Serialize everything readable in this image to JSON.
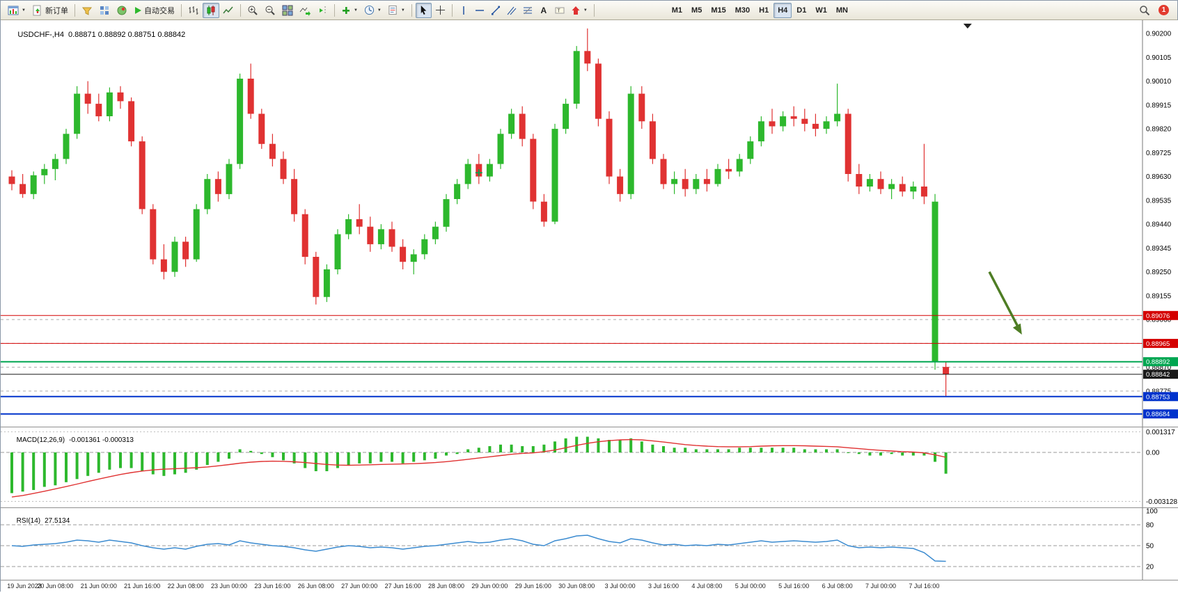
{
  "toolbar": {
    "new_order_label": "新订单",
    "auto_trading_label": "自动交易",
    "timeframes": [
      "M1",
      "M5",
      "M15",
      "M30",
      "H1",
      "H4",
      "D1",
      "W1",
      "MN"
    ],
    "active_timeframe": "H4",
    "notification_count": "1"
  },
  "chart": {
    "symbol_period": "USDCHF-,H4",
    "ohlc_quote": "0.88871 0.88892 0.88751 0.88842"
  },
  "indicators": {
    "macd": {
      "name": "MACD(12,26,9)",
      "values": "-0.001361 -0.000313",
      "axis_labels": [
        "0.001317",
        "0.00",
        "-0.003128"
      ]
    },
    "rsi": {
      "name": "RSI(14)",
      "value": "27.5134",
      "axis_labels": [
        "100",
        "80",
        "50",
        "20"
      ]
    }
  },
  "colors": {
    "bull": "#2db82d",
    "bear": "#e03232",
    "macd_hist": "#2db82d",
    "macd_signal": "#e03232",
    "rsi_line": "#3b8bd0",
    "arrow_annotation": "#4e7d24",
    "grid": "#aaaaaa"
  },
  "chart_data": {
    "price": {
      "type": "candlestick",
      "symbol": "USDCHF",
      "timeframe": "H4",
      "ylim": [
        0.88633,
        0.90253
      ],
      "axis_labels": [
        "0.90200",
        "0.90105",
        "0.90010",
        "0.89915",
        "0.89820",
        "0.89725",
        "0.89630",
        "0.89535",
        "0.89440",
        "0.89345",
        "0.89250",
        "0.89155",
        "0.89060",
        "0.88965",
        "0.88870",
        "0.88775",
        "0.88680"
      ],
      "grid_levels": [
        0.8906,
        0.88965,
        0.8887,
        0.88775
      ],
      "lines": [
        {
          "value": 0.89076,
          "label": "0.89076",
          "color": "#d40000",
          "width": 1
        },
        {
          "value": 0.88965,
          "label": "0.88965",
          "color": "#d40000",
          "width": 1
        },
        {
          "value": 0.88892,
          "label": "0.88892",
          "color": "#00a651",
          "width": 2
        },
        {
          "value": 0.88842,
          "label": "0.88842",
          "color": "#1a1a1a",
          "width": 1
        },
        {
          "value": 0.88753,
          "label": "0.88753",
          "color": "#0033cc",
          "width": 2
        },
        {
          "value": 0.88684,
          "label": "0.88684",
          "color": "#0033cc",
          "width": 2
        }
      ],
      "marker": {
        "bar": 43,
        "price": 0.89645
      },
      "arrow": {
        "from_bar": 90,
        "from_price": 0.8925,
        "to_bar": 93,
        "to_price": 0.89
      },
      "shift_marker_bar": 88,
      "bars_per_label": 4,
      "ohlc": [
        [
          0.8963,
          0.89655,
          0.89575,
          0.896
        ],
        [
          0.896,
          0.8964,
          0.89545,
          0.8956
        ],
        [
          0.8956,
          0.8965,
          0.8954,
          0.89635
        ],
        [
          0.89635,
          0.8968,
          0.896,
          0.8966
        ],
        [
          0.8966,
          0.8972,
          0.89615,
          0.897
        ],
        [
          0.897,
          0.8982,
          0.8968,
          0.898
        ],
        [
          0.898,
          0.8999,
          0.8978,
          0.8996
        ],
        [
          0.8996,
          0.9001,
          0.8988,
          0.8992
        ],
        [
          0.8992,
          0.8996,
          0.8985,
          0.8987
        ],
        [
          0.8987,
          0.89985,
          0.8985,
          0.89965
        ],
        [
          0.89965,
          0.8999,
          0.899,
          0.8993
        ],
        [
          0.8993,
          0.89945,
          0.8975,
          0.8977
        ],
        [
          0.8977,
          0.8979,
          0.8948,
          0.895
        ],
        [
          0.895,
          0.8952,
          0.8928,
          0.893
        ],
        [
          0.893,
          0.8936,
          0.8922,
          0.8925
        ],
        [
          0.8925,
          0.8939,
          0.8923,
          0.8937
        ],
        [
          0.8937,
          0.8939,
          0.8927,
          0.893
        ],
        [
          0.893,
          0.8952,
          0.8929,
          0.895
        ],
        [
          0.895,
          0.8964,
          0.8948,
          0.8962
        ],
        [
          0.8962,
          0.8965,
          0.8953,
          0.8956
        ],
        [
          0.8956,
          0.897,
          0.8954,
          0.8968
        ],
        [
          0.8968,
          0.9004,
          0.8966,
          0.9002
        ],
        [
          0.9002,
          0.9008,
          0.8986,
          0.8988
        ],
        [
          0.8988,
          0.899,
          0.8974,
          0.8976
        ],
        [
          0.8976,
          0.898,
          0.8967,
          0.897
        ],
        [
          0.897,
          0.8973,
          0.896,
          0.8962
        ],
        [
          0.8962,
          0.8966,
          0.8945,
          0.8948
        ],
        [
          0.8948,
          0.895,
          0.8928,
          0.8931
        ],
        [
          0.8931,
          0.8933,
          0.8912,
          0.8915
        ],
        [
          0.8915,
          0.8928,
          0.8913,
          0.8926
        ],
        [
          0.8926,
          0.8942,
          0.8924,
          0.894
        ],
        [
          0.894,
          0.8948,
          0.8938,
          0.8946
        ],
        [
          0.8946,
          0.8952,
          0.894,
          0.8943
        ],
        [
          0.8943,
          0.8947,
          0.8933,
          0.8936
        ],
        [
          0.8936,
          0.8944,
          0.8934,
          0.8942
        ],
        [
          0.8942,
          0.8945,
          0.8933,
          0.8935
        ],
        [
          0.8935,
          0.8938,
          0.8926,
          0.8929
        ],
        [
          0.8929,
          0.8934,
          0.8924,
          0.8932
        ],
        [
          0.8932,
          0.894,
          0.893,
          0.8938
        ],
        [
          0.8938,
          0.8945,
          0.8936,
          0.8943
        ],
        [
          0.8943,
          0.8956,
          0.8941,
          0.8954
        ],
        [
          0.8954,
          0.8962,
          0.8952,
          0.896
        ],
        [
          0.896,
          0.897,
          0.8958,
          0.8968
        ],
        [
          0.8968,
          0.8972,
          0.896,
          0.8963
        ],
        [
          0.8963,
          0.897,
          0.8961,
          0.8968
        ],
        [
          0.8968,
          0.8982,
          0.8966,
          0.898
        ],
        [
          0.898,
          0.899,
          0.8978,
          0.8988
        ],
        [
          0.8988,
          0.8991,
          0.8975,
          0.8978
        ],
        [
          0.8978,
          0.898,
          0.895,
          0.8953
        ],
        [
          0.8953,
          0.8956,
          0.8943,
          0.8945
        ],
        [
          0.8945,
          0.8984,
          0.8944,
          0.8982
        ],
        [
          0.8982,
          0.8994,
          0.898,
          0.8992
        ],
        [
          0.8992,
          0.9015,
          0.899,
          0.9013
        ],
        [
          0.9013,
          0.9022,
          0.9005,
          0.9008
        ],
        [
          0.9008,
          0.901,
          0.8983,
          0.8986
        ],
        [
          0.8986,
          0.8989,
          0.896,
          0.8963
        ],
        [
          0.8963,
          0.8966,
          0.8953,
          0.8956
        ],
        [
          0.8956,
          0.8999,
          0.8954,
          0.8996
        ],
        [
          0.8996,
          0.8999,
          0.8982,
          0.8985
        ],
        [
          0.8985,
          0.8988,
          0.8968,
          0.897
        ],
        [
          0.897,
          0.8972,
          0.8958,
          0.896
        ],
        [
          0.896,
          0.8965,
          0.8956,
          0.8962
        ],
        [
          0.8962,
          0.8966,
          0.8955,
          0.8958
        ],
        [
          0.8958,
          0.8964,
          0.8956,
          0.8962
        ],
        [
          0.8962,
          0.8966,
          0.8957,
          0.896
        ],
        [
          0.896,
          0.8968,
          0.8959,
          0.8966
        ],
        [
          0.8966,
          0.897,
          0.8962,
          0.8965
        ],
        [
          0.8965,
          0.8972,
          0.8963,
          0.897
        ],
        [
          0.897,
          0.8979,
          0.8968,
          0.8977
        ],
        [
          0.8977,
          0.8987,
          0.8975,
          0.8985
        ],
        [
          0.8985,
          0.899,
          0.898,
          0.8983
        ],
        [
          0.8983,
          0.8989,
          0.8981,
          0.8987
        ],
        [
          0.8987,
          0.8991,
          0.8983,
          0.8986
        ],
        [
          0.8986,
          0.899,
          0.8981,
          0.8984
        ],
        [
          0.8984,
          0.8988,
          0.8979,
          0.8982
        ],
        [
          0.8982,
          0.8987,
          0.898,
          0.8985
        ],
        [
          0.8985,
          0.9,
          0.8983,
          0.8988
        ],
        [
          0.8988,
          0.899,
          0.8961,
          0.8964
        ],
        [
          0.8964,
          0.8968,
          0.8956,
          0.8959
        ],
        [
          0.8959,
          0.8964,
          0.8957,
          0.8962
        ],
        [
          0.8962,
          0.8965,
          0.8956,
          0.8958
        ],
        [
          0.8958,
          0.8962,
          0.8954,
          0.896
        ],
        [
          0.896,
          0.8963,
          0.8955,
          0.8957
        ],
        [
          0.8957,
          0.8961,
          0.8954,
          0.8959
        ],
        [
          0.8959,
          0.8976,
          0.8952,
          0.8955
        ],
        [
          0.8889,
          0.8956,
          0.8886,
          0.8953
        ],
        [
          0.88871,
          0.88892,
          0.88751,
          0.88842
        ]
      ]
    },
    "macd": {
      "type": "bar+line",
      "name": "MACD(12,26,9)",
      "last_histogram": -0.001361,
      "last_signal": -0.000313,
      "axis_values": [
        0.001317,
        0,
        -0.003128
      ],
      "histogram": [
        -0.0026,
        -0.0025,
        -0.0024,
        -0.0022,
        -0.0021,
        -0.0019,
        -0.0017,
        -0.0015,
        -0.0013,
        -0.0011,
        -0.001,
        -0.001,
        -0.0012,
        -0.0014,
        -0.0015,
        -0.0014,
        -0.0013,
        -0.0011,
        -0.0008,
        -0.0006,
        -0.0004,
        0.0002,
        0.0001,
        -0.0001,
        -0.0003,
        -0.0005,
        -0.0007,
        -0.001,
        -0.0012,
        -0.0012,
        -0.001,
        -0.0008,
        -0.0007,
        -0.0007,
        -0.0006,
        -0.0006,
        -0.0007,
        -0.0006,
        -0.0005,
        -0.0004,
        -0.0002,
        -0.0001,
        0.0002,
        0.0003,
        0.0004,
        0.0005,
        0.0005,
        0.0004,
        0.0004,
        0.0005,
        0.0007,
        0.0009,
        0.001,
        0.001,
        0.0009,
        0.0008,
        0.0008,
        0.0009,
        0.0007,
        0.0005,
        0.0004,
        0.0003,
        0.0003,
        0.0002,
        0.0002,
        0.0002,
        0.0002,
        0.0003,
        0.0003,
        0.0003,
        0.0003,
        0.0003,
        0.0003,
        0.0002,
        0.0002,
        0.0002,
        0.0002,
        0.0,
        -0.0001,
        -0.0002,
        -0.0002,
        -0.0001,
        -0.0002,
        -0.0002,
        -0.0002,
        -0.0006,
        -0.001361
      ],
      "signal": [
        -0.00285,
        -0.00275,
        -0.00262,
        -0.00248,
        -0.00233,
        -0.00218,
        -0.00202,
        -0.00186,
        -0.0017,
        -0.00155,
        -0.00141,
        -0.00129,
        -0.00119,
        -0.00112,
        -0.00107,
        -0.00104,
        -0.00101,
        -0.00098,
        -0.00093,
        -0.00086,
        -0.00078,
        -0.00069,
        -0.00062,
        -0.00058,
        -0.00056,
        -0.00057,
        -0.0006,
        -0.00065,
        -0.00071,
        -0.00077,
        -0.00081,
        -0.00082,
        -0.00081,
        -0.00079,
        -0.00077,
        -0.00075,
        -0.00074,
        -0.00072,
        -0.00069,
        -0.00065,
        -0.00059,
        -0.00052,
        -0.00044,
        -0.00036,
        -0.00028,
        -0.0002,
        -0.00012,
        -6e-05,
        -3e-05,
        5e-05,
        0.00015,
        0.0003,
        0.00045,
        0.00058,
        0.00068,
        0.00075,
        0.0008,
        0.00082,
        0.0008,
        0.00074,
        0.00066,
        0.00058,
        0.0005,
        0.00044,
        0.0004,
        0.00037,
        0.00036,
        0.00036,
        0.00037,
        0.0004,
        0.00042,
        0.00043,
        0.00043,
        0.00042,
        0.0004,
        0.00038,
        0.00036,
        0.0003,
        0.00024,
        0.00018,
        0.00013,
        9e-05,
        5e-05,
        2e-05,
        -3e-05,
        -0.00015,
        -0.000313
      ]
    },
    "rsi": {
      "type": "line",
      "name": "RSI(14)",
      "last": 27.5134,
      "levels": [
        80,
        50,
        20
      ],
      "values": [
        50,
        49,
        51,
        52,
        53,
        55,
        58,
        57,
        55,
        58,
        56,
        54,
        50,
        47,
        45,
        47,
        45,
        49,
        52,
        53,
        51,
        57,
        54,
        52,
        50,
        49,
        47,
        44,
        42,
        45,
        48,
        50,
        49,
        47,
        48,
        47,
        45,
        47,
        49,
        50,
        52,
        54,
        56,
        54,
        55,
        58,
        60,
        57,
        52,
        50,
        57,
        60,
        64,
        65,
        60,
        56,
        54,
        60,
        58,
        54,
        51,
        52,
        50,
        51,
        50,
        52,
        51,
        53,
        55,
        57,
        55,
        56,
        57,
        56,
        55,
        56,
        58,
        50,
        47,
        48,
        47,
        48,
        47,
        46,
        40,
        28,
        27.5
      ]
    },
    "time_labels": [
      "19 Jun 2023",
      "20 Jun 08:00",
      "21 Jun 00:00",
      "21 Jun 16:00",
      "22 Jun 08:00",
      "23 Jun 00:00",
      "23 Jun 16:00",
      "26 Jun 08:00",
      "27 Jun 00:00",
      "27 Jun 16:00",
      "28 Jun 08:00",
      "29 Jun 00:00",
      "29 Jun 16:00",
      "30 Jun 08:00",
      "3 Jul 00:00",
      "3 Jul 16:00",
      "4 Jul 08:00",
      "5 Jul 00:00",
      "5 Jul 16:00",
      "6 Jul 08:00",
      "7 Jul 00:00",
      "7 Jul 16:00"
    ]
  }
}
